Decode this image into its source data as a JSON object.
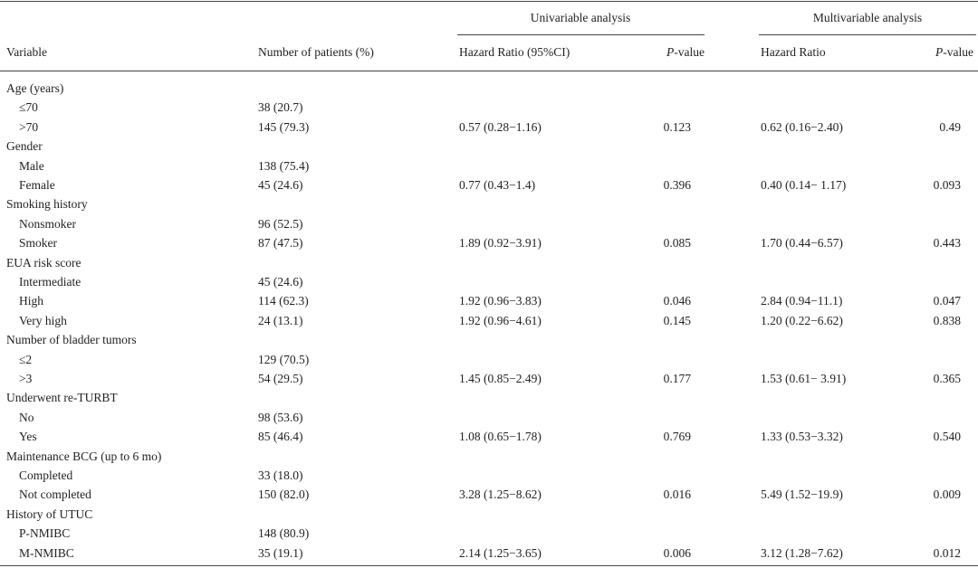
{
  "table": {
    "group_headers": [
      "Univariable analysis",
      "Multivariable analysis"
    ],
    "columns": [
      "Variable",
      "Number of patients (%)",
      "Hazard Ratio (95%CI)",
      "P-value",
      "Hazard Ratio",
      "P-value"
    ],
    "groups": [
      {
        "variable": "Age (years)",
        "levels": [
          {
            "label": "≤70",
            "n": "38 (20.7)"
          },
          {
            "label": ">70",
            "n": "145 (79.3)",
            "hr_uni": "0.57 (0.28−1.16)",
            "p_uni": "0.123",
            "hr_multi": "0.62 (0.16−2.40)",
            "p_multi": "0.49"
          }
        ]
      },
      {
        "variable": "Gender",
        "levels": [
          {
            "label": "Male",
            "n": "138 (75.4)"
          },
          {
            "label": "Female",
            "n": "45 (24.6)",
            "hr_uni": "0.77 (0.43−1.4)",
            "p_uni": "0.396",
            "hr_multi": "0.40 (0.14− 1.17)",
            "p_multi": "0.093"
          }
        ]
      },
      {
        "variable": "Smoking history",
        "levels": [
          {
            "label": "Nonsmoker",
            "n": "96 (52.5)"
          },
          {
            "label": "Smoker",
            "n": "87 (47.5)",
            "hr_uni": "1.89 (0.92−3.91)",
            "p_uni": "0.085",
            "hr_multi": "1.70 (0.44−6.57)",
            "p_multi": "0.443"
          }
        ]
      },
      {
        "variable": "EUA risk score",
        "levels": [
          {
            "label": "Intermediate",
            "n": "45 (24.6)"
          },
          {
            "label": "High",
            "n": "114 (62.3)",
            "hr_uni": "1.92 (0.96−3.83)",
            "p_uni": "0.046",
            "hr_multi": "2.84 (0.94−11.1)",
            "p_multi": "0.047"
          },
          {
            "label": "Very high",
            "n": "24 (13.1)",
            "hr_uni": "1.92 (0.96−4.61)",
            "p_uni": "0.145",
            "hr_multi": "1.20 (0.22−6.62)",
            "p_multi": "0.838"
          }
        ]
      },
      {
        "variable": "Number of bladder tumors",
        "levels": [
          {
            "label": "≤2",
            "n": "129 (70.5)"
          },
          {
            "label": ">3",
            "n": "54 (29.5)",
            "hr_uni": "1.45 (0.85−2.49)",
            "p_uni": "0.177",
            "hr_multi": "1.53 (0.61− 3.91)",
            "p_multi": "0.365"
          }
        ]
      },
      {
        "variable": "Underwent re-TURBT",
        "levels": [
          {
            "label": "No",
            "n": "98 (53.6)"
          },
          {
            "label": "Yes",
            "n": "85 (46.4)",
            "hr_uni": "1.08 (0.65−1.78)",
            "p_uni": "0.769",
            "hr_multi": "1.33 (0.53−3.32)",
            "p_multi": "0.540"
          }
        ]
      },
      {
        "variable": "Maintenance BCG (up to 6 mo)",
        "levels": [
          {
            "label": "Completed",
            "n": "33 (18.0)"
          },
          {
            "label": "Not completed",
            "n": "150 (82.0)",
            "hr_uni": "3.28 (1.25−8.62)",
            "p_uni": "0.016",
            "hr_multi": "5.49 (1.52−19.9)",
            "p_multi": "0.009"
          }
        ]
      },
      {
        "variable": "History of UTUC",
        "levels": [
          {
            "label": "P-NMIBC",
            "n": "148 (80.9)"
          },
          {
            "label": "M-NMIBC",
            "n": "35 (19.1)",
            "hr_uni": "2.14 (1.25−3.65)",
            "p_uni": "0.006",
            "hr_multi": "3.12 (1.28−7.62)",
            "p_multi": "0.012"
          }
        ]
      }
    ]
  }
}
